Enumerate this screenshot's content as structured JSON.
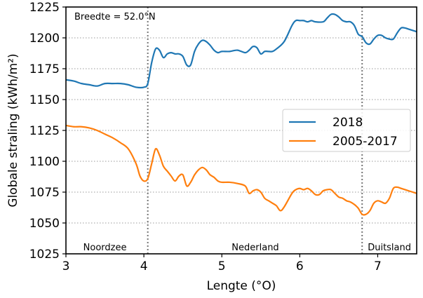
{
  "chart_data": {
    "type": "line",
    "xlabel": "Lengte (°O)",
    "ylabel": "Globale straling (kWh/m²)",
    "xlim": [
      3,
      7.5
    ],
    "ylim": [
      1025,
      1225
    ],
    "xticks": [
      3,
      4,
      5,
      6,
      7
    ],
    "yticks": [
      1025,
      1050,
      1075,
      1100,
      1125,
      1150,
      1175,
      1200,
      1225
    ],
    "grid": "horizontal dotted",
    "legend_position": "right",
    "annotation": "Breedte = 52.0°N",
    "vlines": [
      4.05,
      6.8
    ],
    "regions": [
      {
        "label": "Noordzee",
        "x": 3.5
      },
      {
        "label": "Nederland",
        "x": 5.43
      },
      {
        "label": "Duitsland",
        "x": 7.15
      }
    ],
    "series": [
      {
        "name": "2018",
        "color": "#1f77b4",
        "x": [
          3.0,
          3.1,
          3.2,
          3.3,
          3.4,
          3.5,
          3.6,
          3.7,
          3.8,
          3.9,
          4.0,
          4.05,
          4.1,
          4.15,
          4.2,
          4.25,
          4.3,
          4.35,
          4.4,
          4.45,
          4.5,
          4.55,
          4.6,
          4.65,
          4.7,
          4.75,
          4.8,
          4.85,
          4.9,
          4.95,
          5.0,
          5.1,
          5.2,
          5.3,
          5.35,
          5.4,
          5.45,
          5.5,
          5.55,
          5.6,
          5.65,
          5.7,
          5.8,
          5.9,
          5.95,
          6.0,
          6.05,
          6.1,
          6.15,
          6.2,
          6.3,
          6.35,
          6.4,
          6.45,
          6.5,
          6.55,
          6.6,
          6.65,
          6.7,
          6.75,
          6.8,
          6.85,
          6.9,
          6.95,
          7.0,
          7.05,
          7.1,
          7.15,
          7.2,
          7.25,
          7.3,
          7.35,
          7.4,
          7.45,
          7.5
        ],
        "values": [
          1166,
          1165,
          1163,
          1162,
          1161,
          1163,
          1163,
          1163,
          1162,
          1160,
          1160,
          1163,
          1180,
          1191,
          1190,
          1184,
          1187,
          1188,
          1187,
          1187,
          1185,
          1178,
          1178,
          1189,
          1195,
          1198,
          1197,
          1194,
          1190,
          1188,
          1189,
          1189,
          1190,
          1188,
          1190,
          1193,
          1192,
          1187,
          1189,
          1189,
          1189,
          1191,
          1197,
          1210,
          1214,
          1214,
          1214,
          1213,
          1214,
          1213,
          1213,
          1216,
          1219,
          1219,
          1217,
          1214,
          1213,
          1213,
          1210,
          1203,
          1201,
          1196,
          1195,
          1199,
          1202,
          1202,
          1200,
          1199,
          1199,
          1204,
          1208,
          1208,
          1207,
          1206,
          1205
        ]
      },
      {
        "name": "2005-2017",
        "color": "#ff7f0e",
        "x": [
          3.0,
          3.1,
          3.2,
          3.3,
          3.4,
          3.5,
          3.6,
          3.7,
          3.8,
          3.9,
          3.95,
          4.0,
          4.05,
          4.1,
          4.15,
          4.2,
          4.25,
          4.3,
          4.35,
          4.4,
          4.45,
          4.5,
          4.55,
          4.6,
          4.65,
          4.7,
          4.75,
          4.8,
          4.85,
          4.9,
          4.95,
          5.0,
          5.1,
          5.2,
          5.3,
          5.35,
          5.4,
          5.45,
          5.5,
          5.55,
          5.6,
          5.65,
          5.7,
          5.75,
          5.8,
          5.9,
          5.95,
          6.0,
          6.05,
          6.1,
          6.15,
          6.2,
          6.25,
          6.3,
          6.35,
          6.4,
          6.45,
          6.5,
          6.55,
          6.6,
          6.65,
          6.7,
          6.75,
          6.8,
          6.85,
          6.9,
          6.95,
          7.0,
          7.05,
          7.1,
          7.15,
          7.2,
          7.25,
          7.3,
          7.35,
          7.4,
          7.45,
          7.5
        ],
        "values": [
          1129,
          1128,
          1128,
          1127,
          1125,
          1122,
          1119,
          1115,
          1110,
          1098,
          1088,
          1084,
          1086,
          1098,
          1110,
          1105,
          1096,
          1092,
          1088,
          1084,
          1088,
          1089,
          1080,
          1083,
          1089,
          1093,
          1095,
          1093,
          1089,
          1087,
          1084,
          1083,
          1083,
          1082,
          1080,
          1074,
          1076,
          1077,
          1075,
          1070,
          1068,
          1066,
          1064,
          1060,
          1063,
          1074,
          1077,
          1078,
          1077,
          1078,
          1076,
          1073,
          1073,
          1076,
          1077,
          1077,
          1074,
          1071,
          1070,
          1068,
          1067,
          1065,
          1062,
          1057,
          1057,
          1060,
          1066,
          1068,
          1067,
          1066,
          1070,
          1078,
          1079,
          1078,
          1077,
          1076,
          1075,
          1074
        ]
      }
    ]
  }
}
